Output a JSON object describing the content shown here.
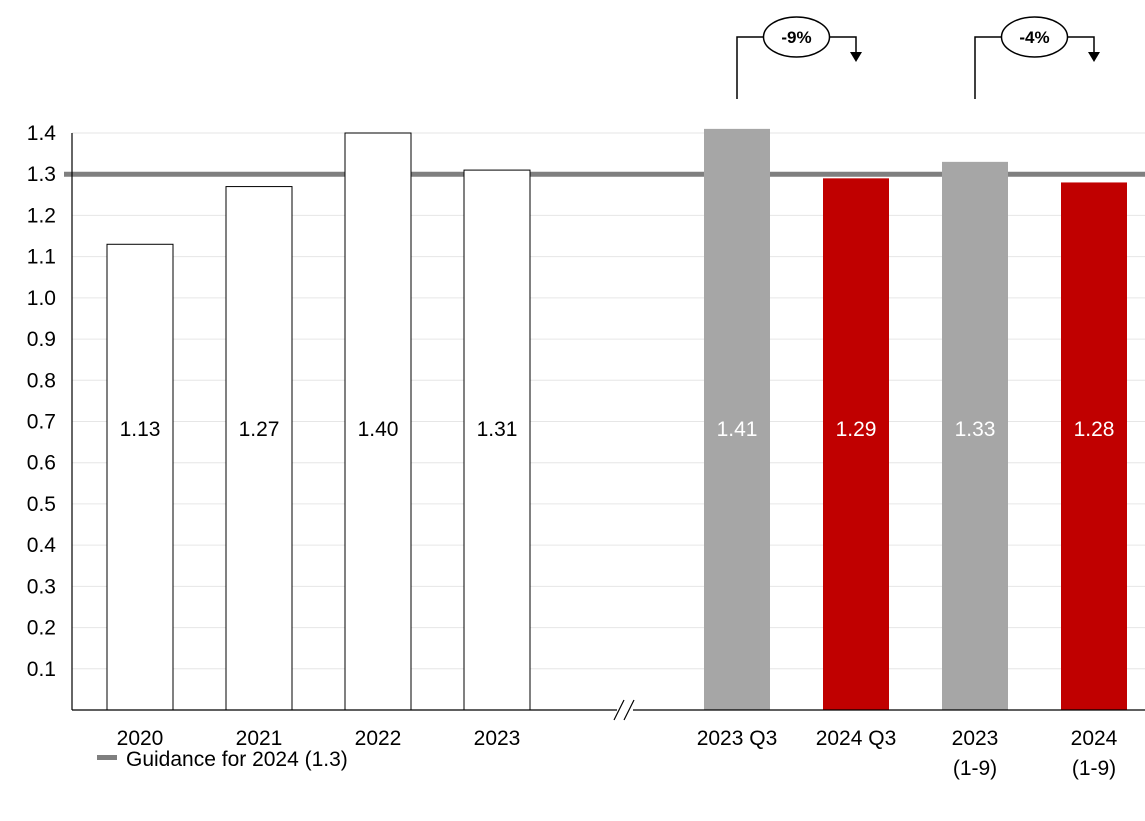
{
  "chart_data": {
    "type": "bar",
    "title": "",
    "xlabel": "",
    "ylabel": "",
    "ylim": [
      0,
      1.4
    ],
    "yticks": [
      0.1,
      0.2,
      0.3,
      0.4,
      0.5,
      0.6,
      0.7,
      0.8,
      0.9,
      1.0,
      1.1,
      1.2,
      1.3,
      1.4
    ],
    "grid": true,
    "axis_break_after": "2023",
    "categories": [
      {
        "label": "2020",
        "label2": "",
        "value": 1.13,
        "value_label": "1.13",
        "style": "outline"
      },
      {
        "label": "2021",
        "label2": "",
        "value": 1.27,
        "value_label": "1.27",
        "style": "outline"
      },
      {
        "label": "2022",
        "label2": "",
        "value": 1.4,
        "value_label": "1.40",
        "style": "outline"
      },
      {
        "label": "2023",
        "label2": "",
        "value": 1.31,
        "value_label": "1.31",
        "style": "outline"
      },
      {
        "label": "2023 Q3",
        "label2": "",
        "value": 1.41,
        "value_label": "1.41",
        "style": "gray"
      },
      {
        "label": "2024 Q3",
        "label2": "",
        "value": 1.29,
        "value_label": "1.29",
        "style": "red"
      },
      {
        "label": "2023",
        "label2": "(1-9)",
        "value": 1.33,
        "value_label": "1.33",
        "style": "gray"
      },
      {
        "label": "2024",
        "label2": "(1-9)",
        "value": 1.28,
        "value_label": "1.28",
        "style": "red"
      }
    ],
    "reference_line": {
      "value": 1.3,
      "label": "Guidance for 2024 (1.3)"
    },
    "annotations": [
      {
        "from_index": 4,
        "to_index": 5,
        "text": "-9%"
      },
      {
        "from_index": 6,
        "to_index": 7,
        "text": "-4%"
      }
    ],
    "legend": {
      "position": "bottom-left",
      "entries": [
        "Guidance for 2024 (1.3)"
      ]
    },
    "colors": {
      "gray": "#a6a6a6",
      "red": "#c00000",
      "outline_fill": "#ffffff",
      "outline_stroke": "#000000",
      "reference": "#7f7f7f",
      "grid": "#e6e6e6",
      "white_text": "#ffffff",
      "black_text": "#000000"
    }
  }
}
